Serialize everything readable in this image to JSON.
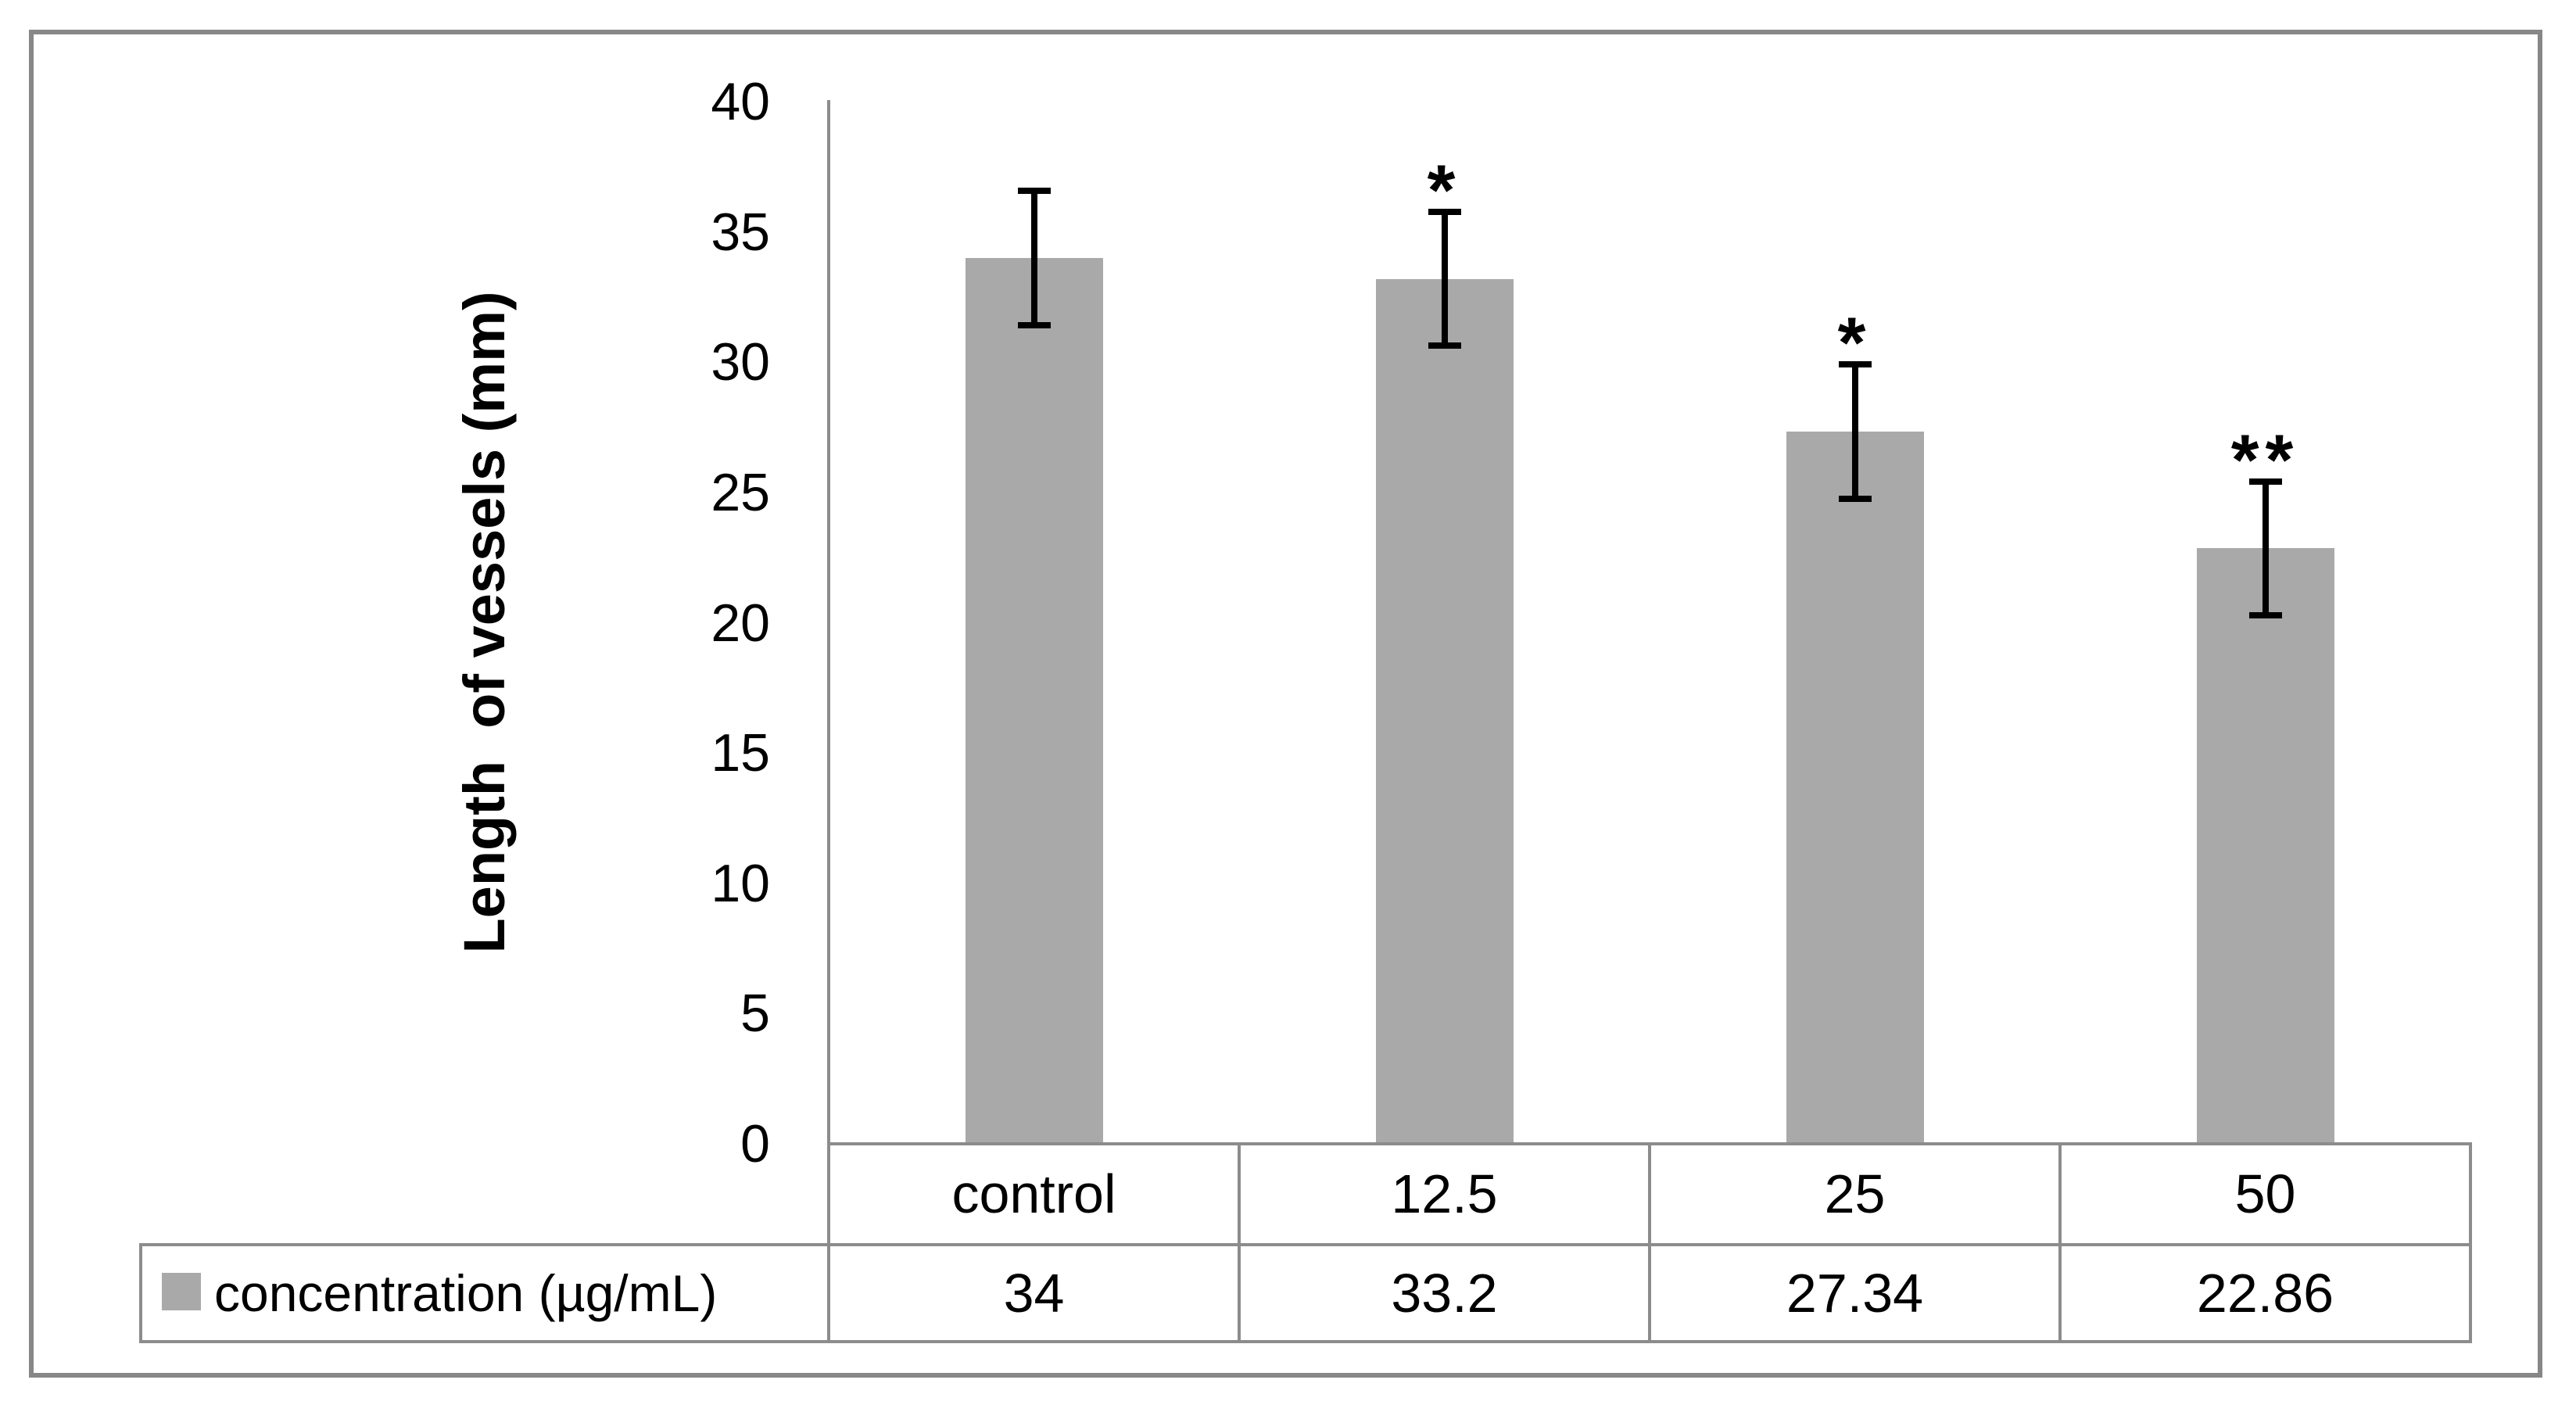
{
  "figure": {
    "background": "#ffffff"
  },
  "colors": {
    "bar_fill": "#a9a9a9",
    "axis_and_table_lines": "#8c8c8c",
    "outer_frame": "#878787",
    "error_bar": "#000000",
    "text": "#000000",
    "legend_swatch": "#a9a9a9"
  },
  "chart_data": {
    "type": "bar",
    "title": "",
    "xlabel": "",
    "ylabel": "Length  of vessels (mm)",
    "categories": [
      "control",
      "12.5",
      "25",
      "50"
    ],
    "series": [
      {
        "name": "concentration (µg/mL)",
        "values": [
          34,
          33.2,
          27.34,
          22.86
        ],
        "value_labels": [
          "34",
          "33.2",
          "27.34",
          "22.86"
        ],
        "errors": [
          2.6,
          2.6,
          2.6,
          2.6
        ],
        "significance": [
          "",
          "*",
          "*",
          "**"
        ],
        "color": "#a9a9a9"
      }
    ],
    "ylim": [
      0,
      40
    ],
    "ytick_step": 5,
    "ytick_labels": [
      "40",
      "35",
      "30",
      "25",
      "20",
      "15",
      "10",
      "5",
      "0"
    ],
    "grid": false,
    "error_bars": "both-ends-with-caps",
    "legend_position": "bottom-left-of-data-table",
    "data_table_shown": true
  }
}
